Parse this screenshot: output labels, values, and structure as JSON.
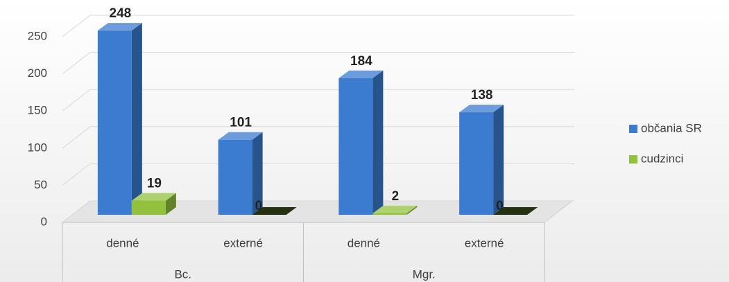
{
  "chart_data": {
    "type": "bar3d",
    "category_groups": [
      {
        "name": "Bc.",
        "categories": [
          "denné",
          "externé"
        ]
      },
      {
        "name": "Mgr.",
        "categories": [
          "denné",
          "externé"
        ]
      }
    ],
    "series": [
      {
        "name": "občania SR",
        "color": "#3b7bd0",
        "values": [
          248,
          101,
          184,
          138
        ]
      },
      {
        "name": "cudzinci",
        "color": "#92c13e",
        "values": [
          19,
          0,
          2,
          0
        ]
      }
    ],
    "ylim": [
      0,
      250
    ],
    "yticks": [
      0,
      50,
      100,
      150,
      200,
      250
    ],
    "grid": true,
    "legend": "right"
  }
}
